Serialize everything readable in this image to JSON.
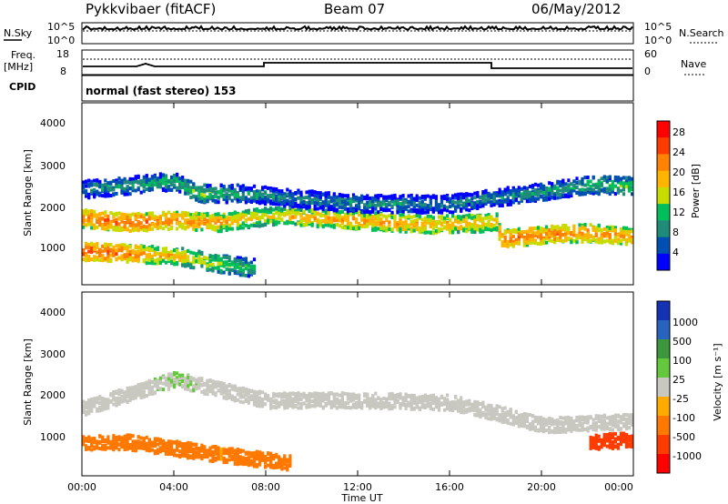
{
  "header": {
    "station": "Pykkvibaer (fitACF)",
    "beam": "Beam 07",
    "date": "06/May/2012"
  },
  "nsky_panel": {
    "left_label": "N.Sky",
    "left_ticks": [
      "10^5",
      "10^0"
    ],
    "right_label": "N.Search",
    "right_ticks": [
      "10^5",
      "10^0"
    ]
  },
  "freq_panel": {
    "left_label_top": "Freq.",
    "left_label_bottom": "[MHz]",
    "left_ticks": [
      "18",
      "8"
    ],
    "right_label": "Nave",
    "right_ticks": [
      "60",
      "0"
    ]
  },
  "cpid": {
    "label": "CPID",
    "mode": "normal (fast stereo) 153"
  },
  "x_axis": {
    "label": "Time UT",
    "ticks": [
      "00:00",
      "04:00",
      "08:00",
      "12:00",
      "16:00",
      "20:00",
      "00:00"
    ]
  },
  "power_panel": {
    "ylabel": "Slant Range [km]",
    "yticks": [
      "4000",
      "3000",
      "2000",
      "1000"
    ],
    "colorbar_label": "Power [dB]",
    "colorbar_ticks": [
      "28",
      "24",
      "20",
      "16",
      "12",
      "8",
      "4"
    ],
    "colors": [
      "#ff0000",
      "#ff3c00",
      "#ff8200",
      "#ffb400",
      "#c8dc00",
      "#00be5a",
      "#1e8c78",
      "#0050b4",
      "#0000ff"
    ]
  },
  "velocity_panel": {
    "ylabel": "Slant Range [km]",
    "yticks": [
      "4000",
      "3000",
      "2000",
      "1000"
    ],
    "colorbar_label": "Velocity [m s⁻¹]",
    "colorbar_ticks": [
      "1000",
      "500",
      "100",
      "25",
      "-25",
      "-100",
      "-500",
      "-1000"
    ],
    "colors": [
      "#1432b4",
      "#2864be",
      "#3c963c",
      "#64c83c",
      "#c8c8c0",
      "#ffaa00",
      "#ff7800",
      "#ff3c00",
      "#ff0000"
    ]
  },
  "chart_data": {
    "type": "heatmap",
    "title": "Pykkvibaer (fitACF)  Beam 07  06/May/2012",
    "xlabel": "Time UT",
    "ylabel": "Slant Range [km]",
    "xlim_hours": [
      0,
      24
    ],
    "ylim_km": [
      200,
      4600
    ],
    "power_range_db": [
      0,
      32
    ],
    "velocity_range_ms": [
      -1000,
      1000
    ],
    "power_bands": [
      {
        "name": "main-band",
        "points": [
          [
            0,
            1800,
            25
          ],
          [
            2,
            1700,
            27
          ],
          [
            4,
            1750,
            24
          ],
          [
            6,
            1700,
            22
          ],
          [
            8,
            1850,
            18
          ],
          [
            9,
            1850,
            20
          ],
          [
            12,
            1750,
            23
          ],
          [
            15,
            1650,
            22
          ],
          [
            18,
            1700,
            20
          ],
          [
            18.2,
            1300,
            26
          ],
          [
            20,
            1400,
            25
          ],
          [
            22,
            1450,
            24
          ],
          [
            24,
            1350,
            22
          ]
        ]
      },
      {
        "name": "near-range-band",
        "points": [
          [
            0,
            1000,
            28
          ],
          [
            2,
            950,
            25
          ],
          [
            4,
            900,
            20
          ],
          [
            6,
            700,
            16
          ],
          [
            7.5,
            600,
            12
          ]
        ]
      },
      {
        "name": "upper-band",
        "points": [
          [
            0,
            2500,
            8
          ],
          [
            4,
            2700,
            12
          ],
          [
            5,
            2400,
            14
          ],
          [
            7,
            2400,
            10
          ],
          [
            9,
            2300,
            8
          ],
          [
            12,
            2150,
            9
          ],
          [
            16,
            2150,
            8
          ],
          [
            18,
            2300,
            8
          ],
          [
            22,
            2600,
            12
          ],
          [
            24,
            2600,
            14
          ]
        ]
      }
    ],
    "velocity_bands": [
      {
        "name": "main-band",
        "points": [
          [
            0,
            1800,
            0
          ],
          [
            4,
            2500,
            10
          ],
          [
            8,
            2000,
            0
          ],
          [
            12,
            2000,
            0
          ],
          [
            16,
            1950,
            0
          ],
          [
            18,
            1700,
            0
          ],
          [
            20,
            1400,
            0
          ],
          [
            24,
            1500,
            0
          ]
        ]
      },
      {
        "name": "near-range-flow",
        "points": [
          [
            0,
            1000,
            -300
          ],
          [
            2,
            1000,
            -200
          ],
          [
            4,
            850,
            -150
          ],
          [
            6,
            700,
            -100
          ],
          [
            9,
            500,
            -150
          ]
        ]
      },
      {
        "name": "dawn-flow",
        "points": [
          [
            22,
            1000,
            -700
          ],
          [
            24,
            1050,
            -900
          ]
        ]
      }
    ]
  }
}
